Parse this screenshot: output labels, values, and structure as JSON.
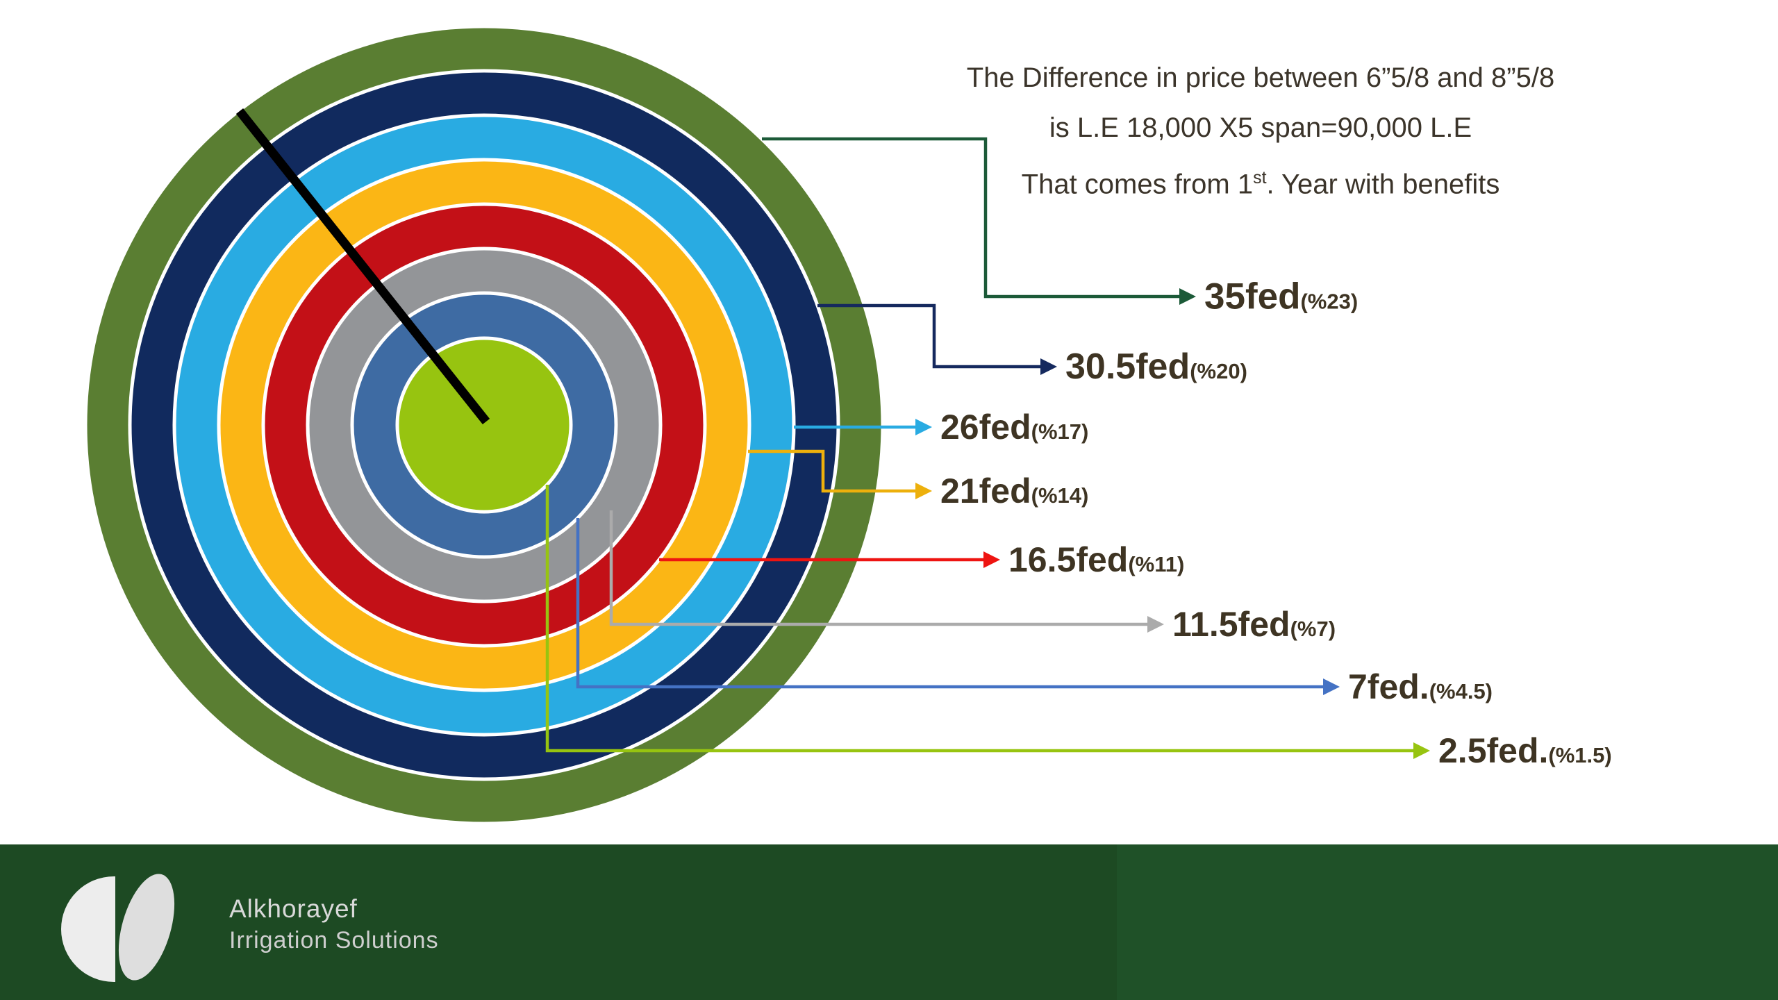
{
  "note": {
    "line1": "The Difference in price between 6”5/8 and 8”5/8",
    "line2": "is L.E 18,000 X5 span=90,000 L.E",
    "line3_prefix": "That comes from 1",
    "line3_sup": "st",
    "line3_suffix": ". Year with benefits"
  },
  "chart_data": {
    "type": "concentric_rings",
    "order": "outermost_to_innermost",
    "unit": "feddan",
    "title": "",
    "rings": [
      {
        "label": "35fed",
        "pct_label": "(%23)",
        "fed": 35,
        "percent": 23,
        "ring_color": "#5a7e32",
        "connector_color": "#1c5a38"
      },
      {
        "label": "30.5fed",
        "pct_label": "(%20)",
        "fed": 30.5,
        "percent": 20,
        "ring_color": "#112a5e",
        "connector_color": "#15295e"
      },
      {
        "label": "26fed",
        "pct_label": "(%17)",
        "fed": 26,
        "percent": 17,
        "ring_color": "#29abe2",
        "connector_color": "#29abe2"
      },
      {
        "label": "21fed",
        "pct_label": "(%14)",
        "fed": 21,
        "percent": 14,
        "ring_color": "#fbb615",
        "connector_color": "#edb00c"
      },
      {
        "label": "16.5fed",
        "pct_label": "(%11)",
        "fed": 16.5,
        "percent": 11,
        "ring_color": "#c31017",
        "connector_color": "#ee1411"
      },
      {
        "label": "11.5fed",
        "pct_label": "(%7)",
        "fed": 11.5,
        "percent": 7,
        "ring_color": "#939598",
        "connector_color": "#ababab"
      },
      {
        "label": "7fed.",
        "pct_label": "(%4.5)",
        "fed": 7,
        "percent": 4.5,
        "ring_color": "#3e6ba3",
        "connector_color": "#4472c4"
      },
      {
        "label": "2.5fed.",
        "pct_label": "(%1.5)",
        "fed": 2.5,
        "percent": 1.5,
        "ring_color": "#97c410",
        "connector_color": "#97c410"
      }
    ]
  },
  "footer": {
    "brand_name": "Alkhorayef",
    "brand_tagline": "Irrigation Solutions"
  },
  "colors": {
    "footer_bar": "#1d4a23",
    "footer_bar_right": "#1f5128",
    "note_text": "#3b342a",
    "callout_text": "#3e3423",
    "pointer_line": "#000000",
    "ring_separator": "#ffffff"
  }
}
